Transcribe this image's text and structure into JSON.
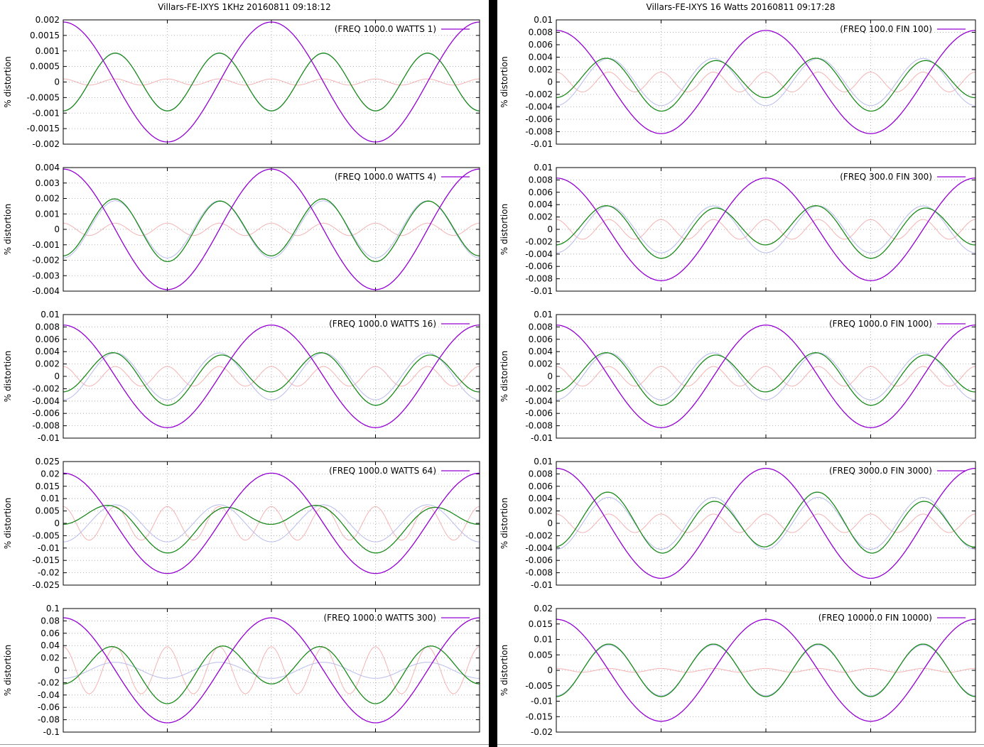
{
  "panels": [
    {
      "title": "Villars-FE-IXYS 1KHz 20160811 09:18:12"
    },
    {
      "title": "Villars-FE-IXYS 16 Watts 20160811 09:17:28"
    }
  ],
  "colors": {
    "magenta": "#9400d3",
    "green": "#1a8a1a",
    "blue": "#b8bcec",
    "pink": "#f4b3b3",
    "grid": "#a0a0a0"
  },
  "chart_data": [
    {
      "type": "line",
      "panel": 0,
      "row": 0,
      "legend": "(FREQ 1000.0 WATTS 1)",
      "ylabel": "% distortion",
      "yticks": [
        "0.002",
        "0.0015",
        "0.001",
        "0.0005",
        "0",
        "-0.0005",
        "-0.001",
        "-0.0015",
        "-0.002"
      ],
      "ylim": [
        -0.002,
        0.002
      ],
      "series": [
        {
          "color": "magenta",
          "amp": 0.00193,
          "h2": 0,
          "h2phase": 0
        },
        {
          "color": "green",
          "amp": 0.00093,
          "h2": 0,
          "h2phase": 0
        },
        {
          "color": "blue",
          "amp": 0.00092,
          "h2": 0,
          "h2phase": 0
        },
        {
          "color": "pink",
          "amp": 0.0001,
          "h2": 0,
          "h2phase": 0
        }
      ]
    },
    {
      "type": "line",
      "panel": 0,
      "row": 1,
      "legend": "(FREQ 1000.0 WATTS 4)",
      "ylabel": "% distortion",
      "yticks": [
        "0.004",
        "0.003",
        "0.002",
        "0.001",
        "0",
        "-0.001",
        "-0.002",
        "-0.003",
        "-0.004"
      ],
      "ylim": [
        -0.004,
        0.004
      ],
      "series": [
        {
          "color": "magenta",
          "amp": 0.0039,
          "h2": 0,
          "h2phase": 0
        },
        {
          "color": "green",
          "amp": 0.0019,
          "h2": 0.0002,
          "h2phase": 1.2
        },
        {
          "color": "blue",
          "amp": 0.00185,
          "h2": 0,
          "h2phase": 0
        },
        {
          "color": "pink",
          "amp": 0.0004,
          "h2": 0,
          "h2phase": 0
        }
      ]
    },
    {
      "type": "line",
      "panel": 0,
      "row": 2,
      "legend": "(FREQ 1000.0 WATTS 16)",
      "ylabel": "% distortion",
      "yticks": [
        "0.01",
        "0.008",
        "0.006",
        "0.004",
        "0.002",
        "0",
        "-0.002",
        "-0.004",
        "-0.006",
        "-0.008",
        "-0.01"
      ],
      "ylim": [
        -0.01,
        0.01
      ],
      "series": [
        {
          "color": "magenta",
          "amp": 0.0083,
          "h2": 0,
          "h2phase": 0
        },
        {
          "color": "green",
          "amp": 0.0036,
          "h2": 0.0011,
          "h2phase": 1.4
        },
        {
          "color": "blue",
          "amp": 0.0038,
          "h2": 0,
          "h2phase": 0
        },
        {
          "color": "pink",
          "amp": 0.0016,
          "h2": 0,
          "h2phase": 0
        }
      ]
    },
    {
      "type": "line",
      "panel": 0,
      "row": 3,
      "legend": "(FREQ 1000.0 WATTS 64)",
      "ylabel": "% distortion",
      "yticks": [
        "0.025",
        "0.02",
        "0.015",
        "0.01",
        "0.005",
        "0",
        "-0.005",
        "-0.01",
        "-0.015",
        "-0.02",
        "-0.025"
      ],
      "ylim": [
        -0.025,
        0.025
      ],
      "series": [
        {
          "color": "magenta",
          "amp": 0.0203,
          "h2": 0,
          "h2phase": 0
        },
        {
          "color": "green",
          "amp": 0.0062,
          "h2": 0.0058,
          "h2phase": 1.5
        },
        {
          "color": "blue",
          "amp": 0.0075,
          "h2": 0,
          "h2phase": 0
        },
        {
          "color": "pink",
          "amp": 0.0068,
          "h2": 0,
          "h2phase": 0
        }
      ]
    },
    {
      "type": "line",
      "panel": 0,
      "row": 4,
      "legend": "(FREQ 1000.0 WATTS 300)",
      "ylabel": "% distortion",
      "yticks": [
        "0.1",
        "0.08",
        "0.06",
        "0.04",
        "0.02",
        "0",
        "-0.02",
        "-0.04",
        "-0.06",
        "-0.08",
        "-0.1"
      ],
      "ylim": [
        -0.1,
        0.1
      ],
      "series": [
        {
          "color": "magenta",
          "amp": 0.085,
          "h2": 0,
          "h2phase": 0
        },
        {
          "color": "green",
          "amp": 0.038,
          "h2": 0.016,
          "h2phase": 1.6
        },
        {
          "color": "blue",
          "amp": 0.013,
          "h2": 0,
          "h2phase": 0
        },
        {
          "color": "pink",
          "amp": 0.038,
          "h2": 0,
          "h2phase": 0
        }
      ]
    },
    {
      "type": "line",
      "panel": 1,
      "row": 0,
      "legend": "(FREQ 100.0 FIN 100)",
      "ylabel": "% distortion",
      "yticks": [
        "0.01",
        "0.008",
        "0.006",
        "0.004",
        "0.002",
        "0",
        "-0.002",
        "-0.004",
        "-0.006",
        "-0.008",
        "-0.01"
      ],
      "ylim": [
        -0.01,
        0.01
      ],
      "series": [
        {
          "color": "magenta",
          "amp": 0.0083,
          "h2": 0,
          "h2phase": 0
        },
        {
          "color": "green",
          "amp": 0.0036,
          "h2": 0.0011,
          "h2phase": 1.4
        },
        {
          "color": "blue",
          "amp": 0.0038,
          "h2": 0,
          "h2phase": 0
        },
        {
          "color": "pink",
          "amp": 0.0016,
          "h2": 0,
          "h2phase": 0
        }
      ]
    },
    {
      "type": "line",
      "panel": 1,
      "row": 1,
      "legend": "(FREQ 300.0 FIN 300)",
      "ylabel": "% distortion",
      "yticks": [
        "0.01",
        "0.008",
        "0.006",
        "0.004",
        "0.002",
        "0",
        "-0.002",
        "-0.004",
        "-0.006",
        "-0.008",
        "-0.01"
      ],
      "ylim": [
        -0.01,
        0.01
      ],
      "series": [
        {
          "color": "magenta",
          "amp": 0.0083,
          "h2": 0,
          "h2phase": 0
        },
        {
          "color": "green",
          "amp": 0.0036,
          "h2": 0.0011,
          "h2phase": 1.4
        },
        {
          "color": "blue",
          "amp": 0.0038,
          "h2": 0,
          "h2phase": 0
        },
        {
          "color": "pink",
          "amp": 0.0016,
          "h2": 0,
          "h2phase": 0
        }
      ]
    },
    {
      "type": "line",
      "panel": 1,
      "row": 2,
      "legend": "(FREQ 1000.0 FIN 1000)",
      "ylabel": "% distortion",
      "yticks": [
        "0.01",
        "0.008",
        "0.006",
        "0.004",
        "0.002",
        "0",
        "-0.002",
        "-0.004",
        "-0.006",
        "-0.008",
        "-0.01"
      ],
      "ylim": [
        -0.01,
        0.01
      ],
      "series": [
        {
          "color": "magenta",
          "amp": 0.0083,
          "h2": 0,
          "h2phase": 0
        },
        {
          "color": "green",
          "amp": 0.0036,
          "h2": 0.0011,
          "h2phase": 1.4
        },
        {
          "color": "blue",
          "amp": 0.0038,
          "h2": 0,
          "h2phase": 0
        },
        {
          "color": "pink",
          "amp": 0.0016,
          "h2": 0,
          "h2phase": 0
        }
      ]
    },
    {
      "type": "line",
      "panel": 1,
      "row": 3,
      "legend": "(FREQ 3000.0 FIN 3000)",
      "ylabel": "% distortion",
      "yticks": [
        "0.01",
        "0.008",
        "0.006",
        "0.004",
        "0.002",
        "0",
        "-0.002",
        "-0.004",
        "-0.006",
        "-0.008",
        "-0.01"
      ],
      "ylim": [
        -0.01,
        0.01
      ],
      "series": [
        {
          "color": "magenta",
          "amp": 0.0089,
          "h2": 0,
          "h2phase": 0
        },
        {
          "color": "green",
          "amp": 0.0043,
          "h2": 0.0009,
          "h2phase": 0.6
        },
        {
          "color": "blue",
          "amp": 0.0042,
          "h2": 0,
          "h2phase": 0
        },
        {
          "color": "pink",
          "amp": 0.0015,
          "h2": 0,
          "h2phase": 0
        }
      ]
    },
    {
      "type": "line",
      "panel": 1,
      "row": 4,
      "legend": "(FREQ 10000.0 FIN 10000)",
      "ylabel": "% distortion",
      "yticks": [
        "0.02",
        "0.015",
        "0.01",
        "0.005",
        "0",
        "-0.005",
        "-0.01",
        "-0.015",
        "-0.02"
      ],
      "ylim": [
        -0.02,
        0.02
      ],
      "series": [
        {
          "color": "magenta",
          "amp": 0.0165,
          "h2": 0,
          "h2phase": 0
        },
        {
          "color": "green",
          "amp": 0.0085,
          "h2": 0,
          "h2phase": 0
        },
        {
          "color": "blue",
          "amp": 0.0082,
          "h2": 0,
          "h2phase": 0
        },
        {
          "color": "pink",
          "amp": 0.0006,
          "h2": 0,
          "h2phase": 0
        }
      ]
    }
  ]
}
